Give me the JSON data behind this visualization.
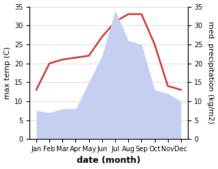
{
  "months": [
    "Jan",
    "Feb",
    "Mar",
    "Apr",
    "May",
    "Jun",
    "Jul",
    "Aug",
    "Sep",
    "Oct",
    "Nov",
    "Dec"
  ],
  "x": [
    0,
    1,
    2,
    3,
    4,
    5,
    6,
    7,
    8,
    9,
    10,
    11
  ],
  "temperature": [
    13,
    20,
    21,
    21.5,
    22,
    27,
    31,
    33,
    33,
    25,
    14,
    13
  ],
  "precipitation": [
    7.5,
    7,
    8,
    8,
    15,
    22,
    34,
    26,
    25,
    13,
    12,
    10
  ],
  "temp_ylim": [
    0,
    35
  ],
  "precip_ylim": [
    0,
    35
  ],
  "temp_color": "#cc3333",
  "precip_color_fill": "#c5cff0",
  "xlabel": "date (month)",
  "ylabel_left": "max temp (C)",
  "ylabel_right": "med. precipitation (kg/m2)",
  "tick_fontsize": 7,
  "label_fontsize": 8,
  "xlabel_fontsize": 9,
  "background_color": "#ffffff"
}
